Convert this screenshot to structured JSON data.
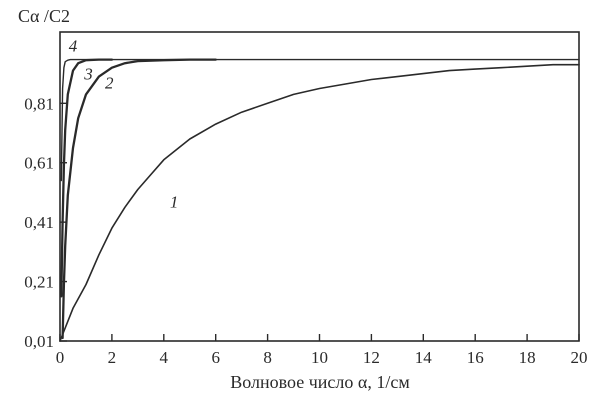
{
  "chart_data": {
    "type": "line",
    "title": "",
    "xlabel": "Волновое число α, 1/см",
    "ylabel": "Cα /C2",
    "xlim": [
      0,
      20
    ],
    "ylim": [
      0.01,
      1.05
    ],
    "x_ticks": [
      0,
      2,
      4,
      6,
      8,
      10,
      12,
      14,
      16,
      18,
      20
    ],
    "y_ticks": [
      {
        "value": 0.01,
        "label": "0,01"
      },
      {
        "value": 0.21,
        "label": "0,21"
      },
      {
        "value": 0.41,
        "label": "0,41"
      },
      {
        "value": 0.61,
        "label": "0,61"
      },
      {
        "value": 0.81,
        "label": "0,81"
      }
    ],
    "grid": false,
    "legend": "none",
    "series": [
      {
        "name": "1",
        "label_at": {
          "x": 4.4,
          "y": 0.46
        },
        "stroke_width": 1.6,
        "x": [
          0,
          0.5,
          1,
          1.5,
          2,
          2.5,
          3,
          3.5,
          4,
          5,
          6,
          7,
          8,
          9,
          10,
          11,
          12,
          13,
          14,
          15,
          16,
          17,
          18,
          19,
          20
        ],
        "y": [
          0.01,
          0.12,
          0.2,
          0.3,
          0.39,
          0.46,
          0.52,
          0.57,
          0.62,
          0.69,
          0.74,
          0.78,
          0.81,
          0.84,
          0.86,
          0.875,
          0.89,
          0.9,
          0.91,
          0.92,
          0.925,
          0.93,
          0.935,
          0.94,
          0.94
        ]
      },
      {
        "name": "2",
        "label_at": {
          "x": 1.9,
          "y": 0.86
        },
        "stroke_width": 2.3,
        "x": [
          0.1,
          0.15,
          0.2,
          0.3,
          0.5,
          0.7,
          1,
          1.5,
          2,
          2.5,
          3,
          4,
          5,
          6
        ],
        "y": [
          0.02,
          0.2,
          0.33,
          0.5,
          0.66,
          0.76,
          0.84,
          0.9,
          0.93,
          0.945,
          0.952,
          0.955,
          0.957,
          0.957
        ]
      },
      {
        "name": "3",
        "label_at": {
          "x": 1.1,
          "y": 0.89
        },
        "stroke_width": 2.3,
        "x": [
          0.05,
          0.1,
          0.15,
          0.2,
          0.3,
          0.5,
          0.7,
          1,
          1.5,
          2
        ],
        "y": [
          0.16,
          0.41,
          0.6,
          0.72,
          0.84,
          0.92,
          0.945,
          0.955,
          0.957,
          0.957
        ]
      },
      {
        "name": "4",
        "label_at": {
          "x": 0.5,
          "y": 0.985
        },
        "stroke_width": 1.4,
        "x": [
          0.05,
          0.1,
          0.15,
          0.2,
          0.3,
          0.4,
          0.6,
          1,
          20
        ],
        "y": [
          0.55,
          0.86,
          0.93,
          0.95,
          0.955,
          0.957,
          0.957,
          0.957,
          0.957
        ]
      }
    ]
  }
}
